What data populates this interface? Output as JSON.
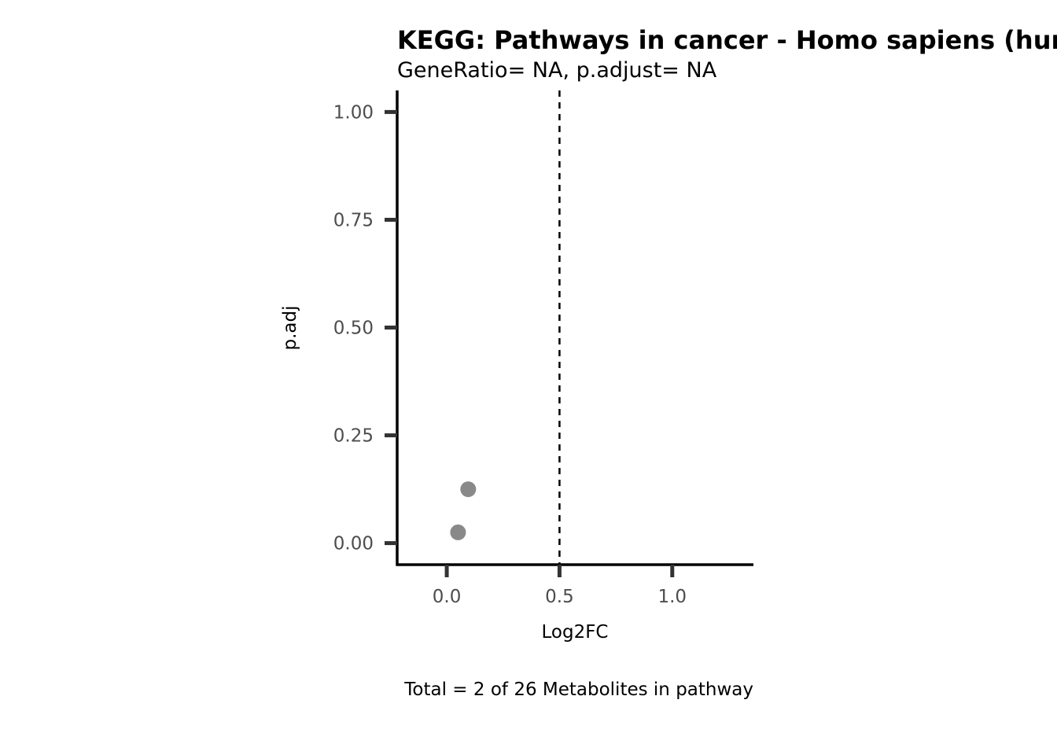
{
  "chart_data": {
    "type": "scatter",
    "title": "KEGG: Pathways in cancer - Homo sapiens (human)",
    "subtitle": "GeneRatio= NA, p.adjust= NA",
    "xlabel": "Log2FC",
    "ylabel": "p.adj",
    "caption": "Total = 2 of 26 Metabolites in pathway",
    "xlim": [
      -0.22,
      1.36
    ],
    "ylim": [
      -0.05,
      1.05
    ],
    "x_ticks": [
      0.0,
      0.5,
      1.0
    ],
    "x_tick_labels": [
      "0.0",
      "0.5",
      "1.0"
    ],
    "y_ticks": [
      0.0,
      0.25,
      0.5,
      0.75,
      1.0
    ],
    "y_tick_labels": [
      "0.00",
      "0.25",
      "0.50",
      "0.75",
      "1.00"
    ],
    "reference_line": {
      "x": 0.5,
      "style": "dashed"
    },
    "points": [
      {
        "x": 0.05,
        "y": 0.025
      },
      {
        "x": 0.095,
        "y": 0.125
      }
    ],
    "point_color": "#898989",
    "grid": false,
    "legend": "none"
  }
}
